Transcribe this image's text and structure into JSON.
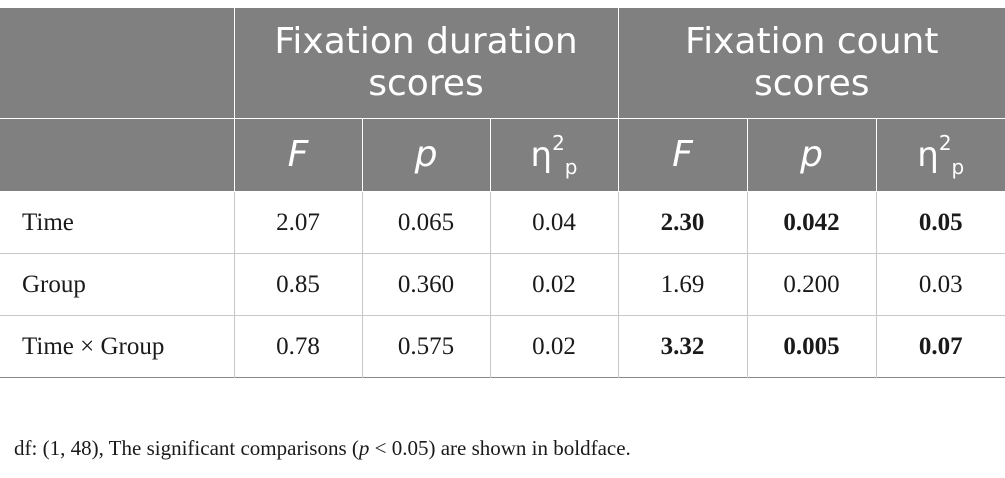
{
  "header": {
    "group1": "Fixation duration scores",
    "group2": "Fixation count scores",
    "sub": {
      "f": "F",
      "p": "p",
      "eta": "η",
      "eta_sup": "2",
      "eta_sub": "p"
    }
  },
  "rows": [
    {
      "label": "Time",
      "fd_f": "2.07",
      "fd_p": "0.065",
      "fd_eta": "0.04",
      "fc_f": "2.30",
      "fc_p": "0.042",
      "fc_eta": "0.05"
    },
    {
      "label": "Group",
      "fd_f": "0.85",
      "fd_p": "0.360",
      "fd_eta": "0.02",
      "fc_f": "1.69",
      "fc_p": "0.200",
      "fc_eta": "0.03"
    },
    {
      "label": "Time × Group",
      "fd_f": "0.78",
      "fd_p": "0.575",
      "fd_eta": "0.02",
      "fc_f": "3.32",
      "fc_p": "0.005",
      "fc_eta": "0.07"
    }
  ],
  "note": {
    "prefix": "df: (1, 48), The significant comparisons (",
    "italic_p": "p",
    "suffix": " < 0.05) are shown in boldface."
  }
}
